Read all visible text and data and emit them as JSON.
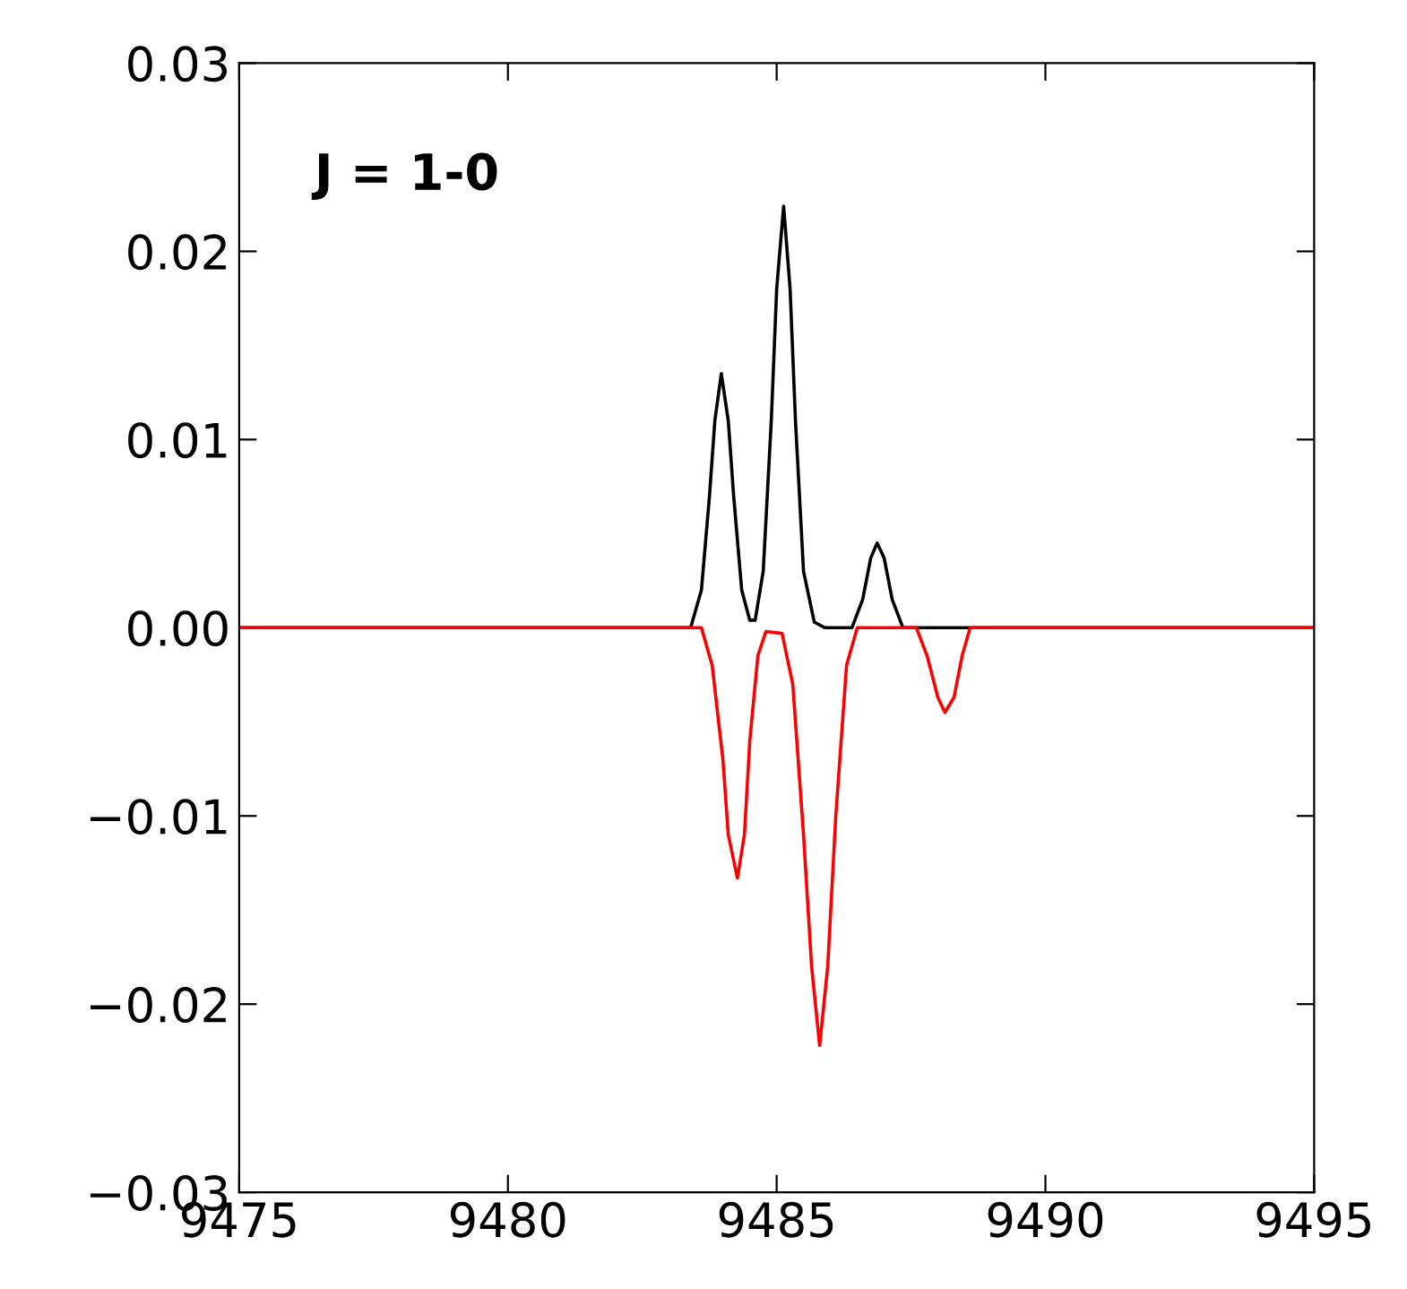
{
  "chart_data": {
    "type": "line",
    "annotations": [
      "J = 1-0"
    ],
    "series": [
      {
        "color": "#000000",
        "x": [
          9475,
          9483.4,
          9483.6,
          9483.75,
          9483.85,
          9483.97,
          9484.1,
          9484.2,
          9484.35,
          9484.5,
          9484.6,
          9484.75,
          9484.9,
          9485.0,
          9485.13,
          9485.25,
          9485.35,
          9485.5,
          9485.7,
          9485.9,
          9486.4,
          9486.6,
          9486.75,
          9486.87,
          9487.0,
          9487.15,
          9487.35,
          9495
        ],
        "values": [
          0,
          0,
          0.002,
          0.007,
          0.011,
          0.0135,
          0.011,
          0.007,
          0.002,
          0.0004,
          0.0004,
          0.003,
          0.011,
          0.018,
          0.0224,
          0.018,
          0.011,
          0.003,
          0.0003,
          0,
          0,
          0.0015,
          0.0037,
          0.0045,
          0.0037,
          0.0015,
          0,
          0
        ]
      },
      {
        "color": "#ff0000",
        "x": [
          9475,
          9483.6,
          9483.8,
          9484.0,
          9484.1,
          9484.27,
          9484.4,
          9484.5,
          9484.65,
          9484.8,
          9485.1,
          9485.3,
          9485.5,
          9485.65,
          9485.8,
          9485.95,
          9486.1,
          9486.3,
          9486.5,
          9487.6,
          9487.8,
          9488.0,
          9488.13,
          9488.3,
          9488.45,
          9488.6,
          9495
        ],
        "values": [
          0,
          0,
          -0.002,
          -0.007,
          -0.011,
          -0.0133,
          -0.011,
          -0.006,
          -0.0015,
          -0.0002,
          -0.0003,
          -0.003,
          -0.011,
          -0.018,
          -0.0222,
          -0.018,
          -0.01,
          -0.002,
          0,
          0,
          -0.0015,
          -0.0037,
          -0.0045,
          -0.0037,
          -0.0015,
          0,
          0
        ]
      }
    ],
    "xlim": [
      9475,
      9495
    ],
    "xticks": [
      9475,
      9480,
      9485,
      9490,
      9495
    ],
    "ylim": [
      -0.03,
      0.03
    ],
    "yticks": [
      {
        "value": -0.03,
        "label": "−0.03"
      },
      {
        "value": -0.02,
        "label": "−0.02"
      },
      {
        "value": -0.01,
        "label": "−0.01"
      },
      {
        "value": 0,
        "label": "0.00"
      },
      {
        "value": 0.01,
        "label": "0.01"
      },
      {
        "value": 0.02,
        "label": "0.02"
      },
      {
        "value": 0.03,
        "label": "0.03"
      }
    ],
    "grid": false,
    "legend": false
  }
}
